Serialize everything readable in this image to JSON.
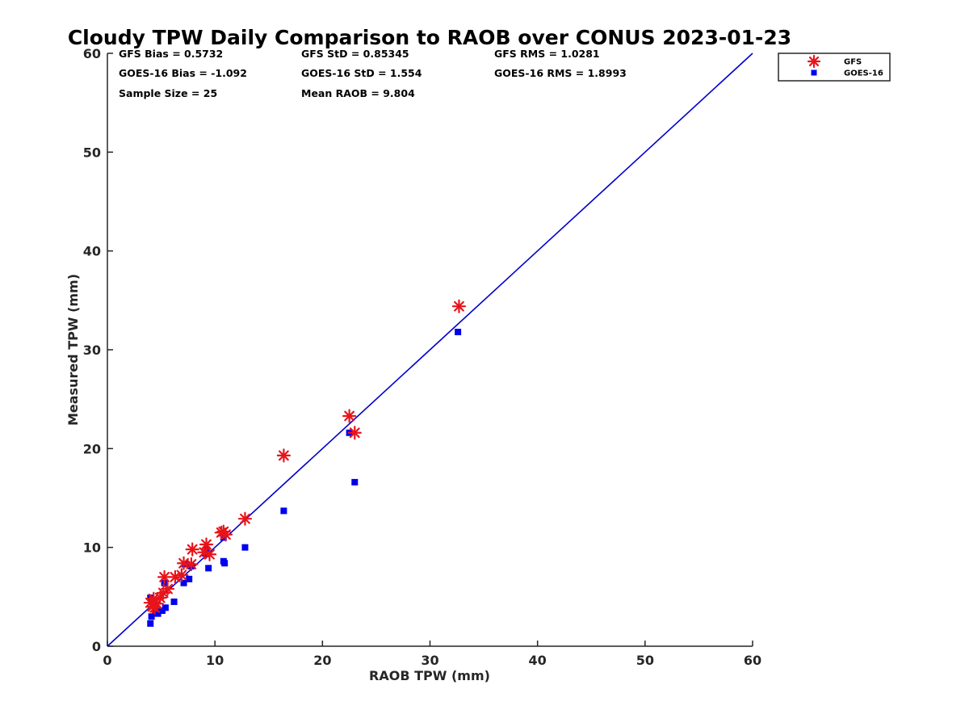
{
  "chart_data": {
    "type": "scatter",
    "title": "Cloudy TPW Daily Comparison to RAOB over CONUS 2023-01-23",
    "xlabel": "RAOB TPW (mm)",
    "ylabel": "Measured TPW (mm)",
    "xlim": [
      0,
      60
    ],
    "ylim": [
      0,
      60
    ],
    "xticks": [
      "0",
      "10",
      "20",
      "30",
      "40",
      "50",
      "60"
    ],
    "yticks": [
      "0",
      "10",
      "20",
      "30",
      "40",
      "50",
      "60"
    ],
    "grid": false,
    "legend_position": "top-right outside",
    "reference_line": {
      "x": [
        0,
        60
      ],
      "y": [
        0,
        60
      ],
      "color": "#0000CC"
    },
    "stats": [
      [
        "GFS Bias = 0.5732",
        "GFS StD = 0.85345",
        "GFS RMS = 1.0281"
      ],
      [
        "GOES-16 Bias = -1.092",
        "GOES-16 StD = 1.554",
        "GOES-16 RMS = 1.8993"
      ],
      [
        "Sample Size = 25",
        "Mean RAOB = 9.804",
        ""
      ]
    ],
    "series": [
      {
        "name": "GFS",
        "marker": "asterisk",
        "color": "#E8141B",
        "points": [
          [
            4.0,
            4.4
          ],
          [
            4.2,
            4.0
          ],
          [
            4.3,
            4.8
          ],
          [
            4.6,
            4.3
          ],
          [
            4.9,
            4.9
          ],
          [
            5.2,
            5.4
          ],
          [
            5.3,
            7.0
          ],
          [
            5.6,
            5.8
          ],
          [
            6.3,
            7.0
          ],
          [
            6.9,
            7.2
          ],
          [
            7.1,
            8.4
          ],
          [
            7.8,
            8.3
          ],
          [
            7.9,
            9.8
          ],
          [
            9.2,
            10.3
          ],
          [
            9.5,
            9.3
          ],
          [
            10.8,
            11.6
          ],
          [
            11.0,
            11.3
          ],
          [
            10.6,
            11.5
          ],
          [
            12.8,
            12.9
          ],
          [
            16.4,
            19.3
          ],
          [
            22.5,
            23.3
          ],
          [
            23.0,
            21.6
          ],
          [
            32.7,
            34.4
          ],
          [
            9.0,
            9.5
          ],
          [
            4.4,
            3.9
          ]
        ]
      },
      {
        "name": "GOES-16",
        "marker": "square",
        "color": "#0000EE",
        "points": [
          [
            4.0,
            2.3
          ],
          [
            4.1,
            3.0
          ],
          [
            4.0,
            4.9
          ],
          [
            4.2,
            4.6
          ],
          [
            4.5,
            3.5
          ],
          [
            4.7,
            3.3
          ],
          [
            5.1,
            3.6
          ],
          [
            5.3,
            6.4
          ],
          [
            5.4,
            3.9
          ],
          [
            6.2,
            4.5
          ],
          [
            7.1,
            6.4
          ],
          [
            7.2,
            8.3
          ],
          [
            7.6,
            6.8
          ],
          [
            7.8,
            8.1
          ],
          [
            9.1,
            9.4
          ],
          [
            9.2,
            9.8
          ],
          [
            9.4,
            7.9
          ],
          [
            10.8,
            11.0
          ],
          [
            10.8,
            8.6
          ],
          [
            10.9,
            8.4
          ],
          [
            12.8,
            10.0
          ],
          [
            16.4,
            13.7
          ],
          [
            22.5,
            21.6
          ],
          [
            23.0,
            16.6
          ],
          [
            32.6,
            31.8
          ]
        ]
      }
    ]
  }
}
